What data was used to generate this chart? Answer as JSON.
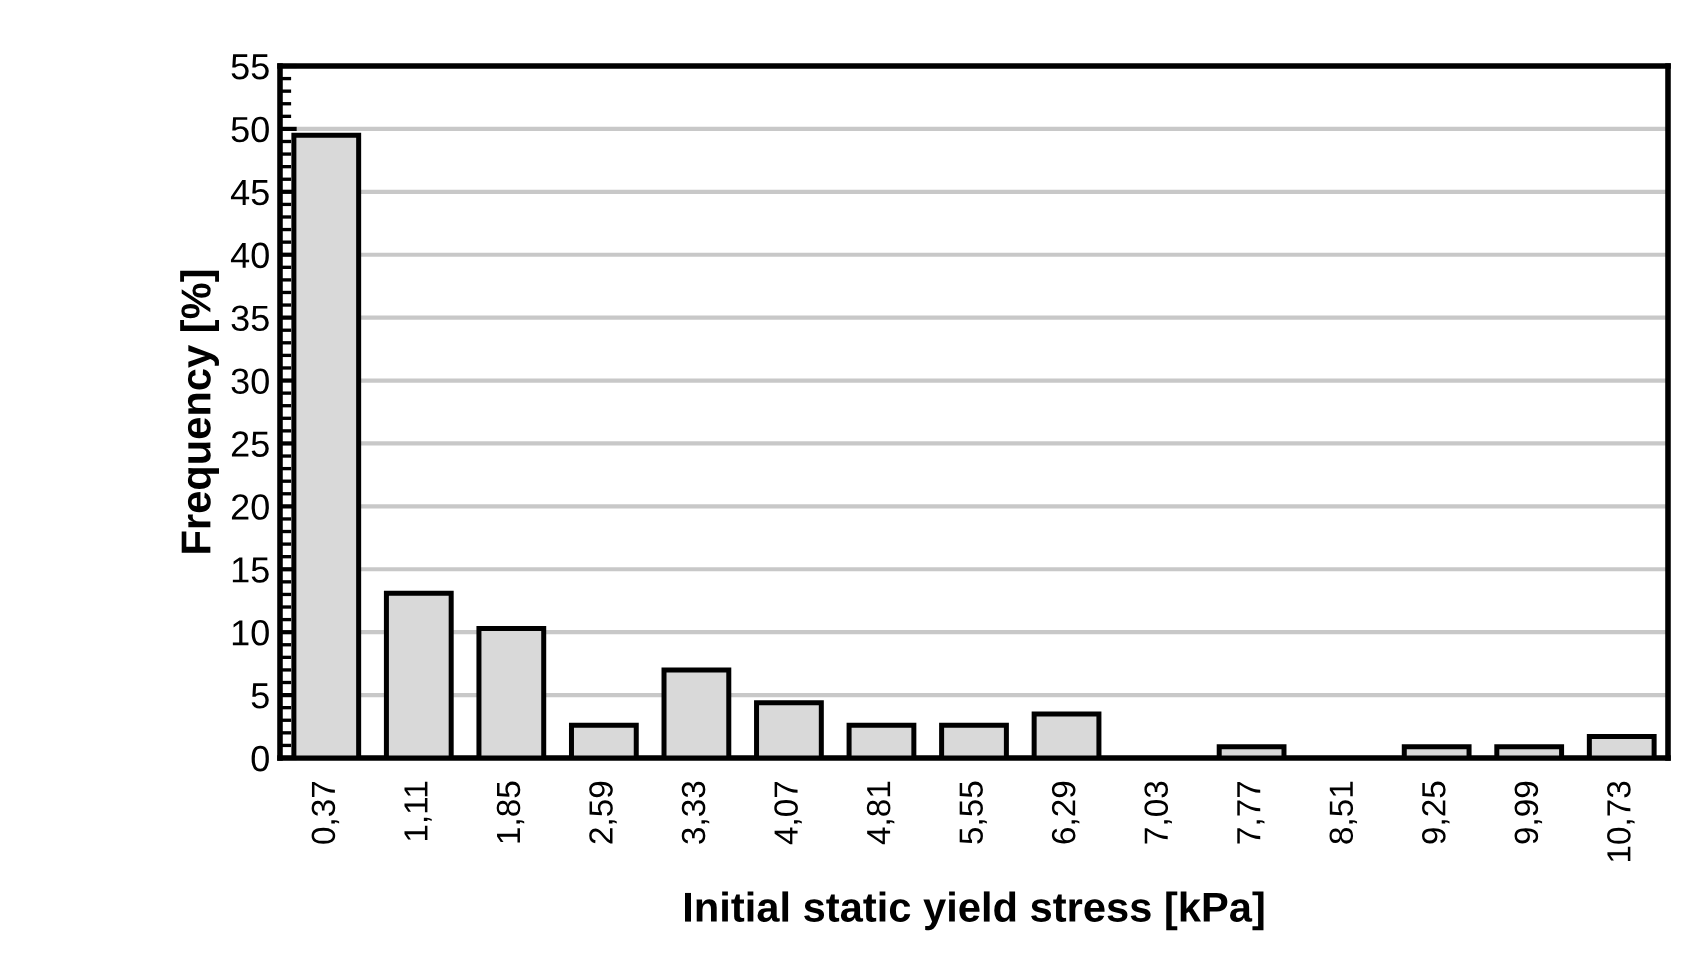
{
  "chart_data": {
    "type": "bar",
    "xlabel": "Initial static yield stress [kPa]",
    "ylabel": "Frequency [%]",
    "categories": [
      "0,37",
      "1,11",
      "1,85",
      "2,59",
      "3,33",
      "4,07",
      "4,81",
      "5,55",
      "6,29",
      "7,03",
      "7,77",
      "8,51",
      "9,25",
      "9,99",
      "10,73"
    ],
    "values": [
      49.5,
      13.1,
      10.3,
      2.6,
      7.0,
      4.4,
      2.6,
      2.6,
      3.5,
      0,
      0.9,
      0,
      0.9,
      0.9,
      1.7
    ],
    "color": "#d9d9d9",
    "ylim": [
      0,
      55
    ],
    "yticks": [
      0,
      5,
      10,
      15,
      20,
      25,
      30,
      35,
      40,
      45,
      50,
      55
    ],
    "grid": "y",
    "legend": false
  }
}
